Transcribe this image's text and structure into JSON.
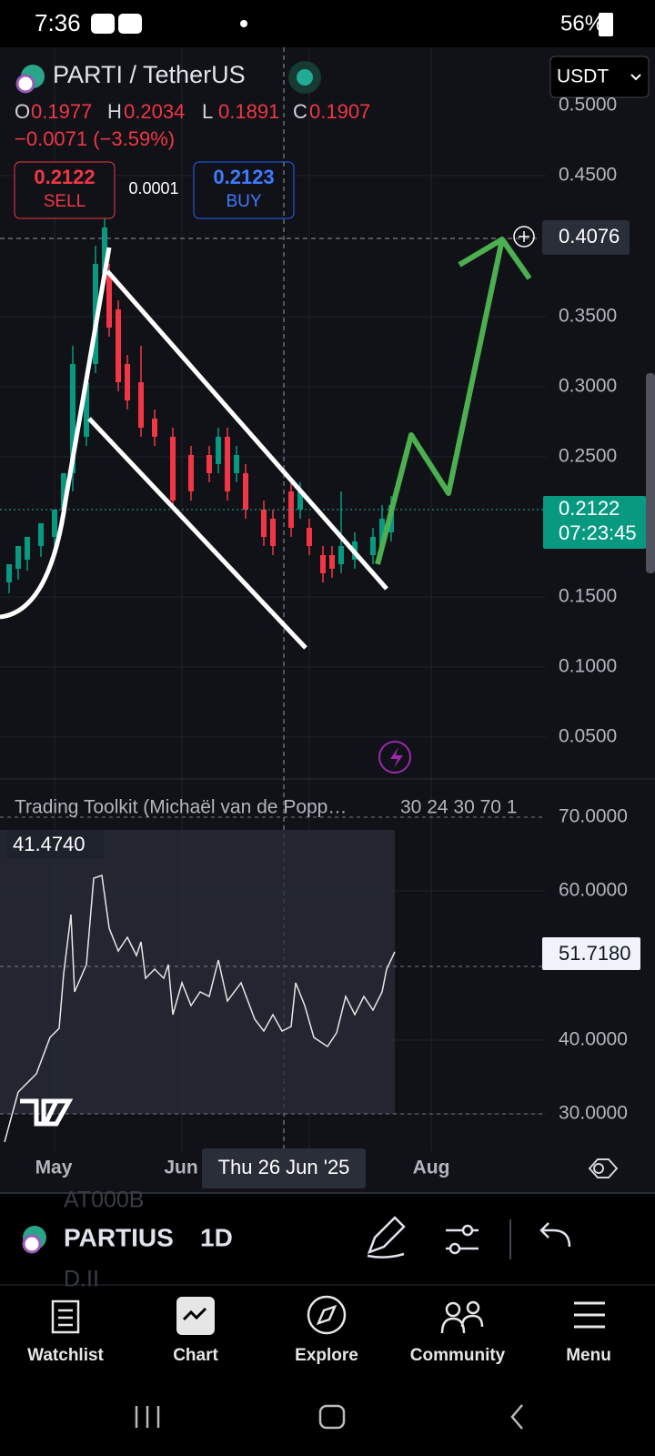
{
  "status": {
    "time": "7:36",
    "battery": "56%"
  },
  "header": {
    "symbol": "PARTI / TetherUS",
    "currency": "USDT"
  },
  "ohlc": [
    {
      "label": "O",
      "value": "0.1977"
    },
    {
      "label": "H",
      "value": "0.2034"
    },
    {
      "label": "L",
      "value": "0.1891"
    },
    {
      "label": "C",
      "value": "0.1907"
    }
  ],
  "change": "−0.0071 (−3.59%)",
  "trade": {
    "sell_price": "0.2122",
    "sell_label": "SELL",
    "spread": "0.0001",
    "buy_price": "0.2123",
    "buy_label": "BUY"
  },
  "price_axis": [
    "0.5000",
    "0.4500",
    "0.3500",
    "0.3000",
    "0.2500",
    "0.1500",
    "0.1000",
    "0.0500"
  ],
  "price_marker": "0.4076",
  "current_price": "0.2122",
  "countdown": "07:23:45",
  "indicator": {
    "title": "Trading Toolkit (Michaël van de Popp…",
    "params": "30 24 30 70 1",
    "value": "41.4740",
    "axis": [
      "70.0000",
      "60.0000",
      "40.0000",
      "30.0000"
    ],
    "marker": "51.7180"
  },
  "x_axis": [
    "May",
    "Jun",
    "Aug"
  ],
  "crosshair_date": "Thu 26 Jun '25",
  "toolbar": {
    "symbol": "PARTIUS",
    "interval": "1D",
    "ghost_top": "AT000B",
    "ghost_bottom": "D.II"
  },
  "nav": [
    "Watchlist",
    "Chart",
    "Explore",
    "Community",
    "Menu"
  ]
}
